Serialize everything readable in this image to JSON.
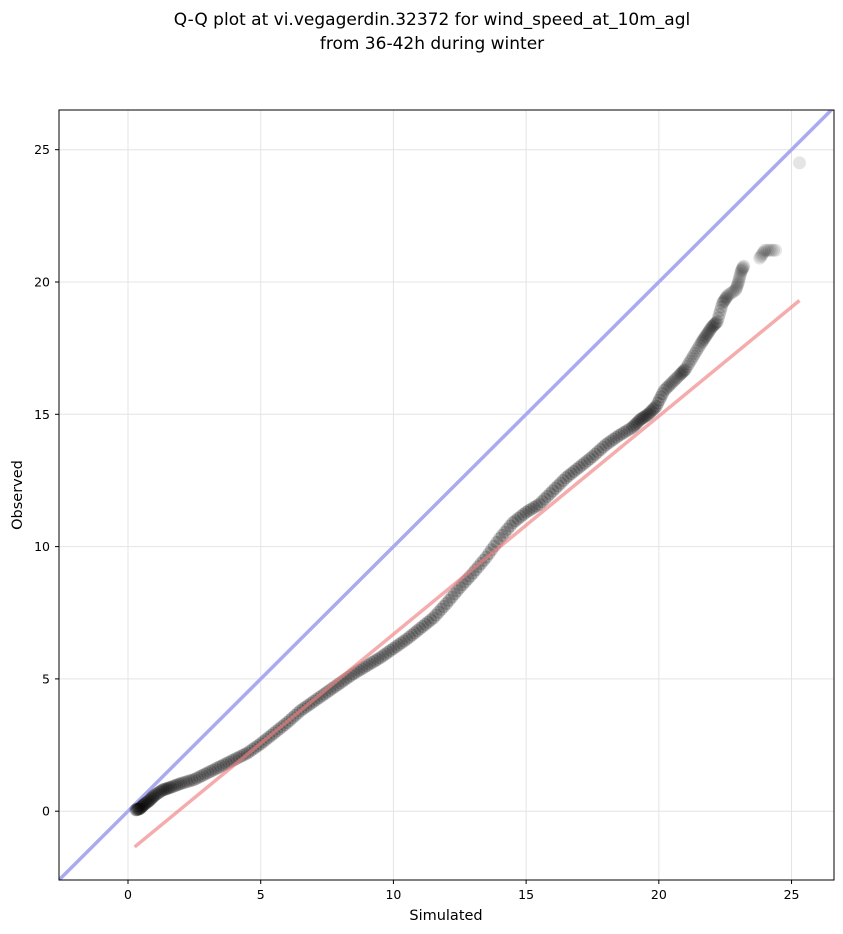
{
  "chart_data": {
    "type": "scatter",
    "title": "Q-Q plot at vi.vegagerdin.32372 for wind_speed_at_10m_agl",
    "subtitle": "from 36-42h during winter",
    "xlabel": "Simulated",
    "ylabel": "Observed",
    "xlim": [
      -2.6,
      26.6
    ],
    "ylim": [
      -2.6,
      26.5
    ],
    "xticks": [
      0,
      5,
      10,
      15,
      20,
      25
    ],
    "yticks": [
      0,
      5,
      10,
      15,
      20,
      25
    ],
    "grid": true,
    "identity_line": {
      "name": "y = x",
      "color": "#aaaaf0",
      "from": [
        -2.6,
        -2.6
      ],
      "to": [
        26.6,
        26.6
      ]
    },
    "fit_line": {
      "color": "#f4a9a9",
      "from": [
        0.25,
        -1.35
      ],
      "to": [
        25.3,
        19.3
      ]
    },
    "point_color": "#000000",
    "series": [
      {
        "x": [
          0.3,
          0.45,
          0.6,
          0.8,
          1.0,
          1.3,
          1.6,
          2.0,
          2.5,
          3.0,
          3.5,
          4.0,
          4.5,
          5.0,
          5.5,
          6.0,
          6.5,
          7.0,
          7.5,
          8.0,
          8.5,
          9.0,
          9.5,
          10.0,
          10.5,
          11.0,
          11.5,
          12.0,
          12.5,
          13.0,
          13.5,
          14.0,
          14.5,
          15.0,
          15.5,
          16.0,
          16.5,
          17.0,
          17.5,
          18.0,
          18.5,
          19.0,
          19.3,
          19.6,
          19.9,
          20.2,
          20.5,
          20.8,
          21.0,
          21.3,
          21.6,
          21.8,
          22.0,
          22.2,
          22.4,
          22.6,
          22.9,
          23.0,
          23.1,
          23.2,
          23.8,
          24.0,
          24.4,
          25.3
        ],
        "y": [
          0.05,
          0.1,
          0.25,
          0.4,
          0.6,
          0.8,
          0.9,
          1.05,
          1.2,
          1.45,
          1.7,
          1.95,
          2.2,
          2.55,
          2.95,
          3.35,
          3.8,
          4.15,
          4.5,
          4.85,
          5.2,
          5.5,
          5.8,
          6.15,
          6.5,
          6.9,
          7.3,
          7.85,
          8.45,
          9.0,
          9.6,
          10.3,
          10.9,
          11.3,
          11.6,
          12.1,
          12.6,
          13.0,
          13.4,
          13.85,
          14.2,
          14.5,
          14.8,
          15.0,
          15.3,
          15.9,
          16.2,
          16.5,
          16.7,
          17.2,
          17.7,
          18.0,
          18.3,
          18.5,
          19.2,
          19.5,
          19.7,
          20.0,
          20.4,
          20.6,
          20.9,
          21.2,
          21.2,
          24.5
        ]
      }
    ]
  }
}
